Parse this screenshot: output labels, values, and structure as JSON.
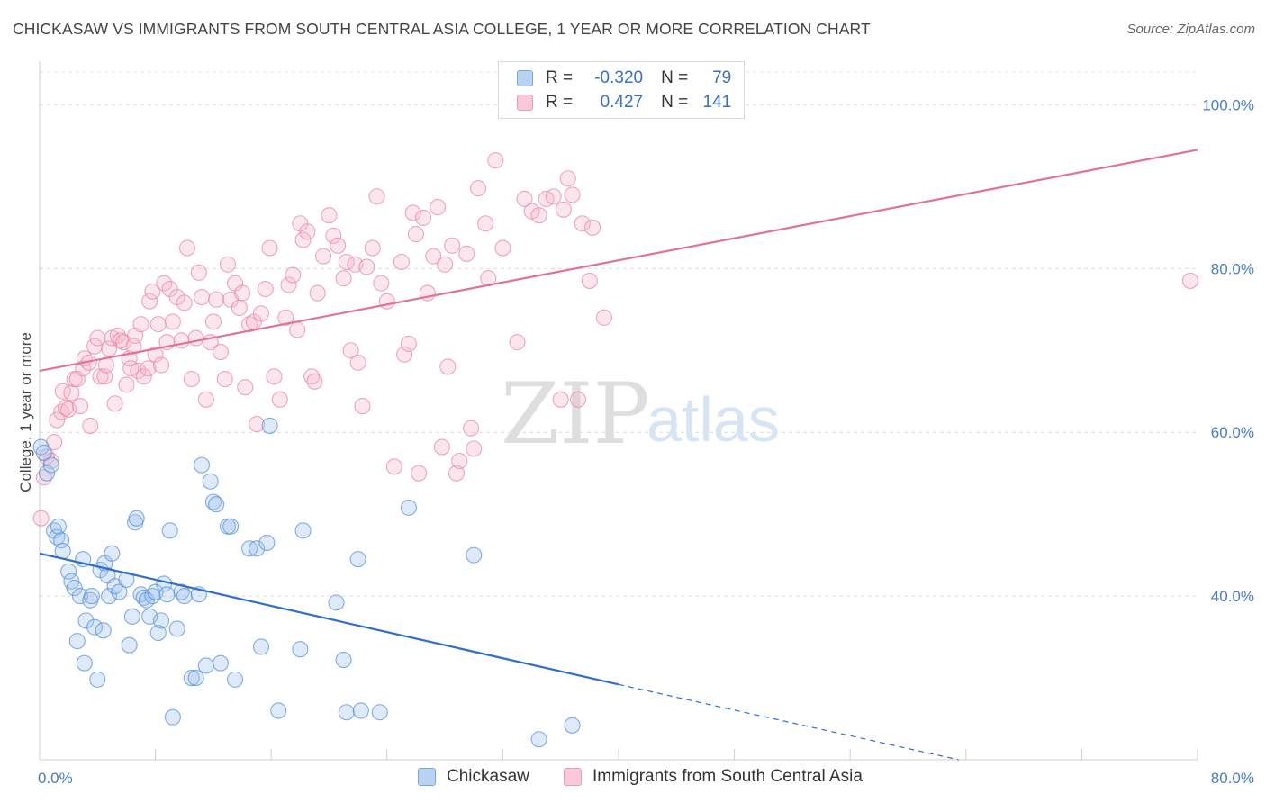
{
  "header": {
    "title": "CHICKASAW VS IMMIGRANTS FROM SOUTH CENTRAL ASIA COLLEGE, 1 YEAR OR MORE CORRELATION CHART",
    "source": "Source: ZipAtlas.com"
  },
  "watermark": {
    "zip": "ZIP",
    "atlas": "atlas"
  },
  "legend": {
    "rows": [
      {
        "r_label": "R =",
        "r_value": "-0.320",
        "n_label": "N =",
        "n_value": "79",
        "color": "#a8c8f0"
      },
      {
        "r_label": "R =",
        "r_value": "0.427",
        "n_label": "N =",
        "n_value": "141",
        "color": "#f7b8cc"
      }
    ]
  },
  "colors": {
    "blue": "#5a93d6",
    "blue_fill": "rgba(160,195,240,0.35)",
    "blue_line": "#2e6fcc",
    "pink": "#e88aa8",
    "pink_fill": "rgba(247,184,204,0.35)",
    "pink_line": "#e0729a",
    "grid": "#dcdcdc",
    "tick_text": "#4a7cc9"
  },
  "chart_data": {
    "type": "scatter",
    "title": "CHICKASAW VS IMMIGRANTS FROM SOUTH CENTRAL ASIA COLLEGE, 1 YEAR OR MORE CORRELATION CHART",
    "xlabel": "",
    "ylabel": "College, 1 year or more",
    "xlim": [
      0,
      80
    ],
    "ylim": [
      20,
      104
    ],
    "x_tick_labels": [
      "0.0%",
      "80.0%"
    ],
    "y_ticks": [
      40,
      60,
      80,
      100
    ],
    "y_tick_labels": [
      "40.0%",
      "60.0%",
      "80.0%",
      "100.0%"
    ],
    "grid": true,
    "legend_position": "bottom",
    "series": [
      {
        "name": "Chickasaw",
        "points": [
          [
            0.1,
            58.2
          ],
          [
            0.3,
            57.5
          ],
          [
            0.5,
            55.0
          ],
          [
            0.8,
            56.0
          ],
          [
            1.0,
            48.0
          ],
          [
            1.2,
            47.2
          ],
          [
            1.3,
            48.5
          ],
          [
            1.5,
            46.8
          ],
          [
            1.6,
            45.5
          ],
          [
            2.0,
            43.0
          ],
          [
            2.2,
            41.8
          ],
          [
            2.4,
            41.0
          ],
          [
            2.6,
            34.5
          ],
          [
            2.8,
            40.0
          ],
          [
            3.0,
            44.5
          ],
          [
            3.1,
            31.8
          ],
          [
            3.2,
            37.0
          ],
          [
            3.5,
            39.5
          ],
          [
            3.6,
            40.0
          ],
          [
            3.8,
            36.2
          ],
          [
            4.0,
            29.8
          ],
          [
            4.2,
            43.2
          ],
          [
            4.4,
            35.8
          ],
          [
            4.5,
            44.0
          ],
          [
            4.7,
            42.5
          ],
          [
            4.8,
            40.0
          ],
          [
            5.0,
            45.2
          ],
          [
            5.2,
            41.2
          ],
          [
            5.5,
            40.5
          ],
          [
            6.0,
            42.0
          ],
          [
            6.2,
            34.0
          ],
          [
            6.4,
            37.5
          ],
          [
            6.6,
            49.0
          ],
          [
            6.7,
            49.5
          ],
          [
            7.0,
            40.2
          ],
          [
            7.2,
            39.8
          ],
          [
            7.4,
            39.5
          ],
          [
            7.6,
            37.5
          ],
          [
            7.8,
            40.0
          ],
          [
            8.0,
            40.5
          ],
          [
            8.2,
            35.5
          ],
          [
            8.4,
            37.0
          ],
          [
            8.6,
            41.5
          ],
          [
            8.8,
            40.2
          ],
          [
            9.0,
            48.0
          ],
          [
            9.2,
            25.2
          ],
          [
            9.5,
            36.0
          ],
          [
            9.8,
            40.5
          ],
          [
            10.0,
            40.0
          ],
          [
            10.5,
            30.0
          ],
          [
            10.8,
            30.0
          ],
          [
            11.0,
            40.2
          ],
          [
            11.2,
            56.0
          ],
          [
            11.5,
            31.5
          ],
          [
            11.8,
            54.0
          ],
          [
            12.0,
            51.5
          ],
          [
            12.2,
            51.2
          ],
          [
            12.5,
            31.8
          ],
          [
            13.0,
            48.5
          ],
          [
            13.2,
            48.5
          ],
          [
            13.5,
            29.8
          ],
          [
            14.5,
            45.8
          ],
          [
            15.0,
            45.8
          ],
          [
            15.3,
            33.8
          ],
          [
            15.7,
            46.5
          ],
          [
            15.9,
            60.8
          ],
          [
            16.5,
            26.0
          ],
          [
            18.0,
            33.5
          ],
          [
            18.2,
            48.0
          ],
          [
            20.5,
            39.2
          ],
          [
            21.0,
            32.2
          ],
          [
            21.2,
            25.8
          ],
          [
            22.0,
            44.5
          ],
          [
            22.2,
            26.0
          ],
          [
            23.5,
            25.8
          ],
          [
            25.5,
            50.8
          ],
          [
            30.0,
            45.0
          ],
          [
            34.5,
            22.5
          ],
          [
            36.8,
            24.2
          ]
        ],
        "trend": {
          "x_start": 0,
          "y_start": 45.2,
          "x_solid_end": 40,
          "y_solid_end": 29.2,
          "x_dash_end": 63.5,
          "y_dash_end": 20.0
        }
      },
      {
        "name": "Immigrants from South Central Asia",
        "points": [
          [
            0.1,
            49.5
          ],
          [
            0.3,
            54.5
          ],
          [
            0.5,
            57.0
          ],
          [
            0.8,
            56.5
          ],
          [
            1.0,
            58.8
          ],
          [
            1.2,
            61.5
          ],
          [
            1.5,
            62.5
          ],
          [
            1.6,
            65.0
          ],
          [
            1.8,
            63.0
          ],
          [
            2.0,
            62.8
          ],
          [
            2.2,
            64.8
          ],
          [
            2.4,
            66.5
          ],
          [
            2.6,
            66.5
          ],
          [
            2.8,
            63.2
          ],
          [
            3.0,
            67.8
          ],
          [
            3.1,
            69.0
          ],
          [
            3.4,
            68.5
          ],
          [
            3.5,
            60.8
          ],
          [
            3.8,
            70.5
          ],
          [
            4.0,
            71.5
          ],
          [
            4.2,
            66.8
          ],
          [
            4.5,
            66.8
          ],
          [
            4.6,
            68.2
          ],
          [
            4.8,
            70.2
          ],
          [
            5.0,
            71.5
          ],
          [
            5.2,
            63.5
          ],
          [
            5.4,
            71.8
          ],
          [
            5.6,
            71.2
          ],
          [
            5.8,
            71.0
          ],
          [
            6.0,
            65.8
          ],
          [
            6.2,
            69.0
          ],
          [
            6.3,
            67.8
          ],
          [
            6.5,
            70.5
          ],
          [
            6.6,
            71.8
          ],
          [
            6.8,
            67.5
          ],
          [
            7.0,
            73.2
          ],
          [
            7.2,
            66.8
          ],
          [
            7.5,
            67.8
          ],
          [
            7.6,
            76.0
          ],
          [
            7.8,
            77.2
          ],
          [
            8.0,
            69.5
          ],
          [
            8.2,
            73.2
          ],
          [
            8.4,
            68.2
          ],
          [
            8.6,
            78.2
          ],
          [
            8.8,
            71.0
          ],
          [
            9.0,
            77.5
          ],
          [
            9.2,
            73.5
          ],
          [
            9.5,
            76.5
          ],
          [
            9.8,
            71.2
          ],
          [
            10.0,
            75.8
          ],
          [
            10.2,
            82.5
          ],
          [
            10.5,
            66.5
          ],
          [
            10.8,
            71.5
          ],
          [
            11.0,
            79.5
          ],
          [
            11.2,
            76.5
          ],
          [
            11.5,
            64.0
          ],
          [
            11.8,
            71.0
          ],
          [
            12.0,
            73.5
          ],
          [
            12.2,
            76.2
          ],
          [
            12.5,
            69.8
          ],
          [
            12.8,
            66.5
          ],
          [
            13.0,
            80.5
          ],
          [
            13.2,
            76.2
          ],
          [
            13.5,
            78.2
          ],
          [
            13.8,
            75.2
          ],
          [
            14.0,
            77.0
          ],
          [
            14.2,
            65.5
          ],
          [
            14.5,
            73.2
          ],
          [
            14.8,
            73.5
          ],
          [
            15.0,
            61.0
          ],
          [
            15.3,
            74.5
          ],
          [
            15.6,
            77.5
          ],
          [
            15.9,
            82.5
          ],
          [
            16.2,
            66.8
          ],
          [
            16.6,
            64.0
          ],
          [
            17.0,
            74.0
          ],
          [
            17.2,
            78.0
          ],
          [
            17.5,
            79.2
          ],
          [
            17.8,
            72.5
          ],
          [
            18.0,
            85.5
          ],
          [
            18.2,
            83.5
          ],
          [
            18.5,
            84.5
          ],
          [
            18.8,
            66.8
          ],
          [
            19.0,
            66.2
          ],
          [
            19.2,
            77.0
          ],
          [
            19.6,
            81.5
          ],
          [
            20.0,
            86.5
          ],
          [
            20.3,
            84.0
          ],
          [
            20.6,
            82.8
          ],
          [
            21.0,
            78.8
          ],
          [
            21.2,
            80.8
          ],
          [
            21.5,
            70.0
          ],
          [
            21.8,
            80.5
          ],
          [
            22.0,
            68.5
          ],
          [
            22.3,
            63.2
          ],
          [
            22.6,
            80.2
          ],
          [
            23.0,
            82.5
          ],
          [
            23.3,
            88.8
          ],
          [
            23.6,
            78.2
          ],
          [
            24.0,
            76.0
          ],
          [
            24.5,
            55.8
          ],
          [
            25.0,
            80.8
          ],
          [
            25.2,
            69.5
          ],
          [
            25.5,
            70.8
          ],
          [
            25.8,
            86.8
          ],
          [
            26.0,
            84.2
          ],
          [
            26.2,
            55.0
          ],
          [
            26.5,
            86.2
          ],
          [
            26.8,
            77.0
          ],
          [
            27.2,
            81.5
          ],
          [
            27.5,
            87.5
          ],
          [
            27.8,
            58.2
          ],
          [
            28.0,
            80.5
          ],
          [
            28.2,
            68.0
          ],
          [
            28.5,
            82.8
          ],
          [
            28.8,
            55.0
          ],
          [
            29.0,
            56.5
          ],
          [
            29.5,
            81.8
          ],
          [
            29.8,
            60.5
          ],
          [
            30.0,
            58.0
          ],
          [
            30.3,
            89.8
          ],
          [
            30.8,
            85.5
          ],
          [
            31.0,
            78.8
          ],
          [
            31.5,
            93.2
          ],
          [
            32.0,
            82.5
          ],
          [
            33.0,
            71.0
          ],
          [
            33.5,
            88.5
          ],
          [
            34.0,
            87.0
          ],
          [
            34.5,
            86.5
          ],
          [
            35.0,
            88.5
          ],
          [
            35.5,
            88.8
          ],
          [
            36.0,
            64.0
          ],
          [
            36.2,
            87.2
          ],
          [
            36.5,
            91.0
          ],
          [
            36.8,
            89.0
          ],
          [
            37.2,
            64.0
          ],
          [
            37.5,
            85.5
          ],
          [
            38.0,
            78.5
          ],
          [
            38.2,
            85.0
          ],
          [
            39.0,
            74.0
          ],
          [
            79.5,
            78.5
          ]
        ],
        "trend": {
          "x_start": 0,
          "y_start": 67.5,
          "x_end": 80,
          "y_end": 94.5
        }
      }
    ]
  }
}
